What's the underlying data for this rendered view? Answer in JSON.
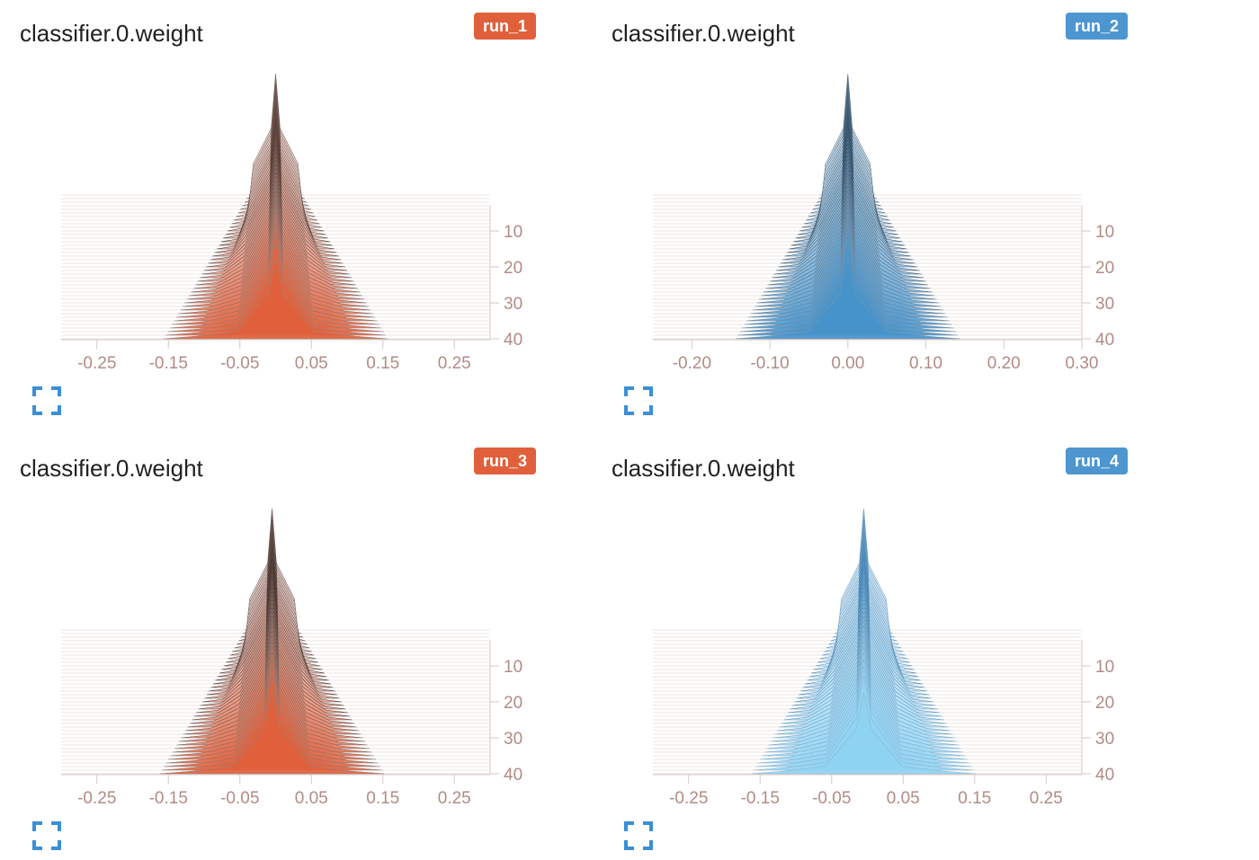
{
  "charts": [
    {
      "title": "classifier.0.weight",
      "run": "run_1",
      "badge_color": "#e0603b",
      "base_color": "#e0603b",
      "light_color": "#f3dfdb",
      "dark_color": "#2b120a",
      "x_ticks": [
        "-0.25",
        "-0.15",
        "-0.05",
        "0.05",
        "0.15",
        "0.25"
      ],
      "y_ticks": [
        "10",
        "20",
        "30",
        "40"
      ]
    },
    {
      "title": "classifier.0.weight",
      "run": "run_2",
      "badge_color": "#4d96cf",
      "base_color": "#4592ca",
      "light_color": "#d6e8f4",
      "dark_color": "#0b2a47",
      "x_ticks": [
        "-0.20",
        "-0.10",
        "0.00",
        "0.10",
        "0.20",
        "0.30"
      ],
      "y_ticks": [
        "10",
        "20",
        "30",
        "40"
      ]
    },
    {
      "title": "classifier.0.weight",
      "run": "run_3",
      "badge_color": "#e0603b",
      "base_color": "#e0603b",
      "light_color": "#f1dcd8",
      "dark_color": "#1a0a05",
      "x_ticks": [
        "-0.25",
        "-0.15",
        "-0.05",
        "0.05",
        "0.15",
        "0.25"
      ],
      "y_ticks": [
        "10",
        "20",
        "30",
        "40"
      ]
    },
    {
      "title": "classifier.0.weight",
      "run": "run_4",
      "badge_color": "#4d96cf",
      "base_color": "#8fd3f2",
      "light_color": "#e5f1f8",
      "dark_color": "#1f6aa5",
      "x_ticks": [
        "-0.25",
        "-0.15",
        "-0.05",
        "0.05",
        "0.15",
        "0.25"
      ],
      "y_ticks": [
        "10",
        "20",
        "30",
        "40"
      ]
    }
  ],
  "chart_data": [
    {
      "type": "area",
      "title": "classifier.0.weight",
      "series_label": "run_1",
      "x_range": [
        -0.3,
        0.3
      ],
      "steps": [
        0,
        40
      ],
      "center": 0.0,
      "x_ticks": [
        -0.25,
        -0.15,
        -0.05,
        0.05,
        0.15,
        0.25
      ],
      "y_ticks": [
        10,
        20,
        30,
        40
      ]
    },
    {
      "type": "area",
      "title": "classifier.0.weight",
      "series_label": "run_2",
      "x_range": [
        -0.25,
        0.3
      ],
      "steps": [
        0,
        40
      ],
      "center": 0.0,
      "x_ticks": [
        -0.2,
        -0.1,
        0.0,
        0.1,
        0.2,
        0.3
      ],
      "y_ticks": [
        10,
        20,
        30,
        40
      ]
    },
    {
      "type": "area",
      "title": "classifier.0.weight",
      "series_label": "run_3",
      "x_range": [
        -0.3,
        0.3
      ],
      "steps": [
        0,
        40
      ],
      "center": -0.005,
      "x_ticks": [
        -0.25,
        -0.15,
        -0.05,
        0.05,
        0.15,
        0.25
      ],
      "y_ticks": [
        10,
        20,
        30,
        40
      ]
    },
    {
      "type": "area",
      "title": "classifier.0.weight",
      "series_label": "run_4",
      "x_range": [
        -0.3,
        0.3
      ],
      "steps": [
        0,
        40
      ],
      "center": -0.005,
      "x_ticks": [
        -0.25,
        -0.15,
        -0.05,
        0.05,
        0.15,
        0.25
      ],
      "y_ticks": [
        10,
        20,
        30,
        40
      ]
    }
  ],
  "icons": {
    "expand": "fullscreen-icon"
  }
}
